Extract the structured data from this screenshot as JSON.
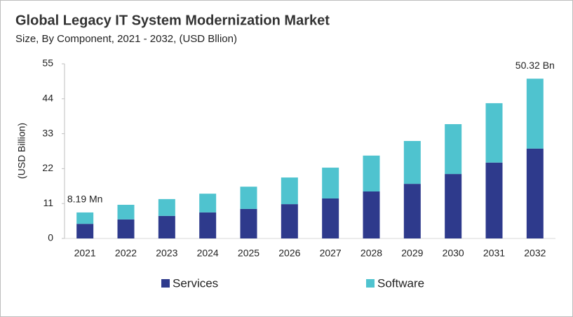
{
  "chart_data": {
    "type": "stacked_bar",
    "title": "Global Legacy IT System Modernization  Market",
    "subtitle": "Size, By Component, 2021 - 2032, (USD Bllion)",
    "y_label": "(USD Billion)",
    "categories": [
      "2021",
      "2022",
      "2023",
      "2024",
      "2025",
      "2026",
      "2027",
      "2028",
      "2029",
      "2030",
      "2031",
      "2032"
    ],
    "series": [
      {
        "name": "Services",
        "color": "#2e3a8c",
        "values": [
          4.6,
          6.0,
          7.1,
          8.2,
          9.3,
          10.8,
          12.6,
          14.8,
          17.2,
          20.3,
          23.9,
          28.3
        ]
      },
      {
        "name": "Software",
        "color": "#4fc3cf",
        "values": [
          3.59,
          4.6,
          5.3,
          5.9,
          7.0,
          8.4,
          9.7,
          11.3,
          13.5,
          15.7,
          18.7,
          22.02
        ]
      }
    ],
    "annotations": [
      {
        "category": "2021",
        "value": 8.19,
        "label": "8.19 Mn"
      },
      {
        "category": "2032",
        "value": 50.32,
        "label": "50.32 Bn"
      }
    ],
    "ylim": [
      0,
      55
    ],
    "yticks": [
      0,
      11,
      22,
      33,
      44,
      55
    ],
    "grid": false
  }
}
